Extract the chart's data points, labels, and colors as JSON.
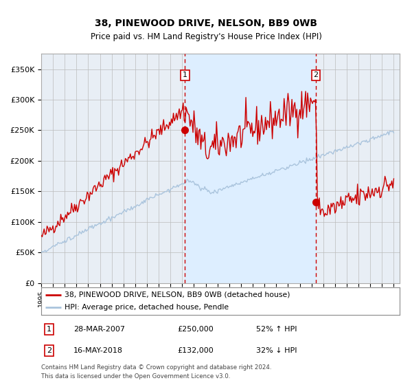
{
  "title": "38, PINEWOOD DRIVE, NELSON, BB9 0WB",
  "subtitle": "Price paid vs. HM Land Registry's House Price Index (HPI)",
  "legend_line1": "38, PINEWOOD DRIVE, NELSON, BB9 0WB (detached house)",
  "legend_line2": "HPI: Average price, detached house, Pendle",
  "table_rows": [
    {
      "num": "1",
      "date": "28-MAR-2007",
      "price": "£250,000",
      "hpi": "52% ↑ HPI"
    },
    {
      "num": "2",
      "date": "16-MAY-2018",
      "price": "£132,000",
      "hpi": "32% ↓ HPI"
    }
  ],
  "footnote1": "Contains HM Land Registry data © Crown copyright and database right 2024.",
  "footnote2": "This data is licensed under the Open Government Licence v3.0.",
  "hpi_color": "#aac4dd",
  "red_color": "#cc0000",
  "dot_color": "#cc0000",
  "dashed_color": "#cc0000",
  "shade_color": "#ddeeff",
  "bg_color": "#e8eef5",
  "grid_color": "#bbbbbb",
  "ylim": [
    0,
    375000
  ],
  "yticks": [
    0,
    50000,
    100000,
    150000,
    200000,
    250000,
    300000,
    350000
  ],
  "sale1_date_num": 2007.23,
  "sale1_price": 250000,
  "sale2_date_num": 2018.37,
  "sale2_price": 132000,
  "xstart": 1995,
  "xend": 2025.5
}
